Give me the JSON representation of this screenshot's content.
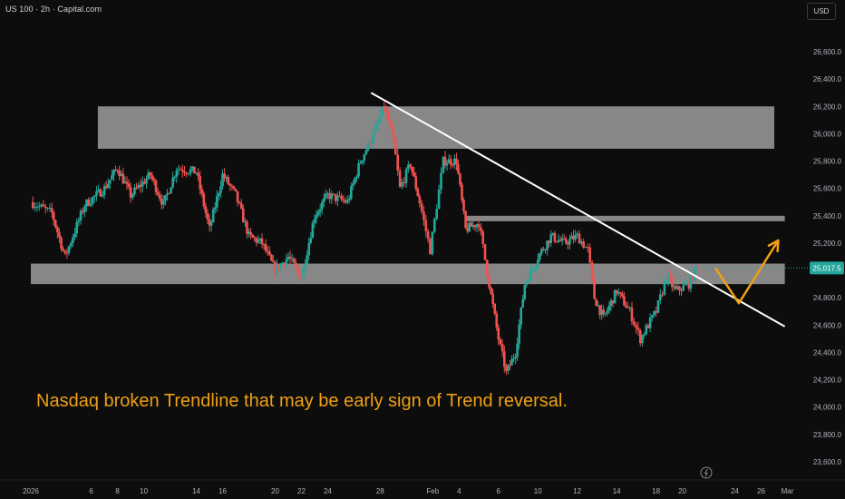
{
  "header": {
    "symbol_label": "US 100 · 2h · Capital.com",
    "currency": "USD"
  },
  "annotation": "Nasdaq broken Trendline that may be early sign of Trend reversal.",
  "price_tag": "25,017.5",
  "colors": {
    "background": "#0d0d0d",
    "up": "#26a69a",
    "down": "#ef5350",
    "zone": "#9e9e9e",
    "trendline": "#ffffff",
    "projection": "#f0a012",
    "axis_text": "#b2b5be"
  },
  "chart_data": {
    "type": "candlestick",
    "y_ticks": [
      "26,600.0",
      "26,400.0",
      "26,200.0",
      "26,000.0",
      "25,800.0",
      "25,600.0",
      "25,400.0",
      "25,200.0",
      "25,000.0",
      "24,800.0",
      "24,600.0",
      "24,400.0",
      "24,200.0",
      "24,000.0",
      "23,800.0",
      "23,600.0"
    ],
    "y_tick_values": [
      26600,
      26400,
      26200,
      26000,
      25800,
      25600,
      25400,
      25200,
      25000,
      24800,
      24600,
      24400,
      24200,
      24000,
      23800,
      23600
    ],
    "x_tick_labels": [
      "2026",
      "6",
      "8",
      "10",
      "14",
      "16",
      "20",
      "22",
      "24",
      "28",
      "Feb",
      "4",
      "6",
      "10",
      "12",
      "14",
      "18",
      "20",
      "24",
      "26",
      "Mar"
    ],
    "x_tick_days": [
      1.4,
      6,
      8,
      10,
      14,
      16,
      20,
      22,
      24,
      28,
      32,
      34,
      37,
      40,
      43,
      46,
      49,
      51,
      55,
      57,
      59
    ],
    "y_range": [
      23600,
      26700
    ],
    "x_range_days": [
      1.4,
      60
    ],
    "last_price": 25017.5,
    "last_price_label": "25,017.5",
    "price_path": [
      {
        "d": 1.4,
        "p": 25500
      },
      {
        "d": 3,
        "p": 25420
      },
      {
        "d": 4,
        "p": 25100
      },
      {
        "d": 5.5,
        "p": 25480
      },
      {
        "d": 7,
        "p": 25600
      },
      {
        "d": 8,
        "p": 25750
      },
      {
        "d": 9,
        "p": 25550
      },
      {
        "d": 10.5,
        "p": 25700
      },
      {
        "d": 11.5,
        "p": 25480
      },
      {
        "d": 12.5,
        "p": 25750
      },
      {
        "d": 14,
        "p": 25720
      },
      {
        "d": 15,
        "p": 25300
      },
      {
        "d": 16,
        "p": 25700
      },
      {
        "d": 17,
        "p": 25550
      },
      {
        "d": 18,
        "p": 25250
      },
      {
        "d": 19,
        "p": 25200
      },
      {
        "d": 20,
        "p": 25000
      },
      {
        "d": 21,
        "p": 25100
      },
      {
        "d": 22,
        "p": 24950
      },
      {
        "d": 23,
        "p": 25400
      },
      {
        "d": 24,
        "p": 25550
      },
      {
        "d": 25.5,
        "p": 25500
      },
      {
        "d": 26.5,
        "p": 25800
      },
      {
        "d": 27.5,
        "p": 26000
      },
      {
        "d": 28.3,
        "p": 26200
      },
      {
        "d": 29,
        "p": 25950
      },
      {
        "d": 29.5,
        "p": 25600
      },
      {
        "d": 30.3,
        "p": 25780
      },
      {
        "d": 31,
        "p": 25500
      },
      {
        "d": 31.8,
        "p": 25150
      },
      {
        "d": 32.8,
        "p": 25800
      },
      {
        "d": 33.8,
        "p": 25800
      },
      {
        "d": 34.5,
        "p": 25300
      },
      {
        "d": 35.5,
        "p": 25350
      },
      {
        "d": 36.3,
        "p": 24900
      },
      {
        "d": 37,
        "p": 24500
      },
      {
        "d": 37.6,
        "p": 24250
      },
      {
        "d": 38.3,
        "p": 24400
      },
      {
        "d": 39,
        "p": 24900
      },
      {
        "d": 40,
        "p": 25100
      },
      {
        "d": 41,
        "p": 25250
      },
      {
        "d": 42,
        "p": 25200
      },
      {
        "d": 43,
        "p": 25250
      },
      {
        "d": 43.8,
        "p": 25150
      },
      {
        "d": 44.3,
        "p": 24800
      },
      {
        "d": 45,
        "p": 24650
      },
      {
        "d": 46,
        "p": 24850
      },
      {
        "d": 47,
        "p": 24700
      },
      {
        "d": 47.8,
        "p": 24500
      },
      {
        "d": 49,
        "p": 24700
      },
      {
        "d": 49.8,
        "p": 24950
      },
      {
        "d": 50.5,
        "p": 24850
      },
      {
        "d": 51.5,
        "p": 24900
      },
      {
        "d": 52.2,
        "p": 25050
      }
    ],
    "zones": [
      {
        "top": 26200,
        "bottom": 25890,
        "d_start": 6.5,
        "d_end": 58
      },
      {
        "top": 25400,
        "bottom": 25360,
        "d_start": 34.5,
        "d_end": 58.8
      },
      {
        "top": 25050,
        "bottom": 24900,
        "d_start": 1.4,
        "d_end": 58.8
      }
    ],
    "trendline": {
      "start": {
        "d": 27.3,
        "p": 26300
      },
      "end": {
        "d": 58.8,
        "p": 24590
      }
    },
    "projection": [
      {
        "d": 53.5,
        "p": 25020
      },
      {
        "d": 55.3,
        "p": 24760
      },
      {
        "d": 58.3,
        "p": 25220
      }
    ]
  }
}
